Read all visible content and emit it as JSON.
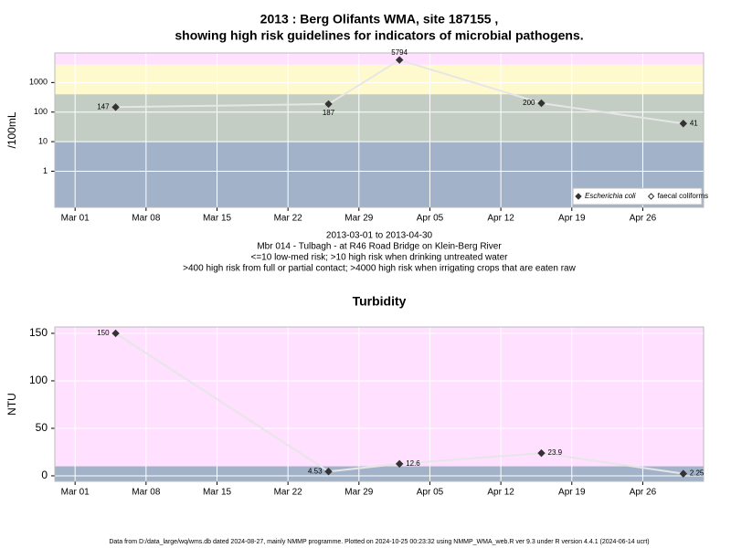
{
  "chart_data": [
    {
      "type": "line",
      "title": [
        "2013 : Berg Olifants WMA, site 187155 ,",
        "showing high risk guidelines for indicators of microbial pathogens."
      ],
      "ylabel": "/100mL",
      "caption": [
        "2013-03-01 to 2013-04-30",
        "Mbr 014 - Tulbagh - at R46 Road Bridge on Klein-Berg River",
        "<=10 low-med risk; >10 high risk when drinking untreated water",
        ">400 high risk from full or partial contact; >4000 high risk when irrigating crops that are eaten raw"
      ],
      "log_y": true,
      "x": [
        "Mar 05",
        "Mar 26",
        "Apr 02",
        "Apr 16",
        "Apr 30"
      ],
      "series": [
        {
          "name": "Escherichia coli",
          "color": "#333333",
          "line_color": "#e6e6e6",
          "marker": "filled",
          "values": [
            147,
            187,
            5794,
            200,
            41
          ]
        },
        {
          "name": "faecal coliforms",
          "color": "#333333",
          "marker": "open",
          "values": [
            null,
            null,
            null,
            null,
            null
          ]
        }
      ],
      "xlim": [
        "Feb 27",
        "May 02"
      ],
      "xticks": [
        "Mar 01",
        "Mar 08",
        "Mar 15",
        "Mar 22",
        "Mar 29",
        "Apr 05",
        "Apr 12",
        "Apr 19",
        "Apr 26"
      ],
      "ylim": [
        0.06,
        10000
      ],
      "yticks": [
        1,
        10,
        100,
        1000
      ],
      "bands": [
        {
          "from": 4000,
          "to": 10000,
          "color": "#ffe0ff"
        },
        {
          "from": 400,
          "to": 4000,
          "color": "#fffacd"
        },
        {
          "from": 10,
          "to": 400,
          "color": "#c3cdc3"
        },
        {
          "from": 0.06,
          "to": 10,
          "color": "#a1b2c9"
        }
      ],
      "grid": true,
      "legend": "bottom-right"
    },
    {
      "type": "line",
      "title": "Turbidity",
      "ylabel": "NTU",
      "x": [
        "Mar 05",
        "Mar 26",
        "Apr 02",
        "Apr 16",
        "Apr 30"
      ],
      "series": [
        {
          "color": "#333333",
          "line_color": "#e6e6e6",
          "marker": "filled",
          "values": [
            150,
            4.53,
            12.6,
            23.9,
            2.25
          ]
        }
      ],
      "xlim": [
        "Feb 27",
        "May 02"
      ],
      "xticks": [
        "Mar 01",
        "Mar 08",
        "Mar 15",
        "Mar 22",
        "Mar 29",
        "Apr 05",
        "Apr 12",
        "Apr 19",
        "Apr 26"
      ],
      "ylim": [
        -5.8,
        156.7
      ],
      "yticks": [
        0,
        50,
        100,
        150
      ],
      "bands": [
        {
          "from": 10,
          "to": 156.7,
          "color": "#ffe0ff"
        },
        {
          "from": -5.8,
          "to": 10,
          "color": "#a1b2c9"
        }
      ],
      "grid": true
    }
  ],
  "footer": "Data from D:/data_large/wq/wms.db dated 2024-08-27, mainly NMMP programme. Plotted on 2024-10-25 00:23:32 using NMMP_WMA_web.R ver 9.3 under R version 4.4.1 (2024-06-14 ucrt)"
}
